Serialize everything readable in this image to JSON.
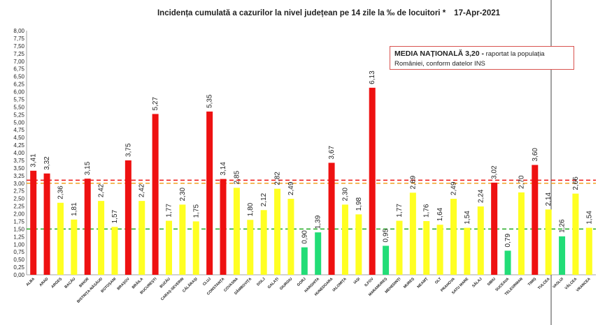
{
  "chart_data": {
    "type": "bar",
    "title": "Incidența cumulată a cazurilor la nivel județean pe 14 zile la ‰ de locuitori *",
    "date": "17-Apr-2021",
    "ylim": [
      0,
      8
    ],
    "yticks": [
      "0,00",
      "0,25",
      "0,50",
      "0,75",
      "1,00",
      "1,25",
      "1,50",
      "1,75",
      "2,00",
      "2,25",
      "2,50",
      "2,75",
      "3,00",
      "3,25",
      "3,50",
      "3,75",
      "4,00",
      "4,25",
      "4,50",
      "4,75",
      "5,00",
      "5,25",
      "5,50",
      "5,75",
      "6,00",
      "6,25",
      "6,50",
      "6,75",
      "7,00",
      "7,25",
      "7,50",
      "7,75",
      "8,00"
    ],
    "categories": [
      "ALBA",
      "ARAD",
      "ARGEȘ",
      "BACĂU",
      "BIHOR",
      "BISTRIȚA-NĂSĂUD",
      "BOTOȘANI",
      "BRAȘOV",
      "BRĂILA",
      "BUCUREȘTI",
      "BUZĂU",
      "CARAȘ-SEVERIN",
      "CĂLĂRAȘI",
      "CLUJ",
      "CONSTANȚA",
      "COVASNA",
      "DÂMBOVIȚA",
      "DOLJ",
      "GALAȚI",
      "GIURGIU",
      "GORJ",
      "HARGHITA",
      "HUNEDOARA",
      "IALOMIȚA",
      "IAȘI",
      "ILFOV",
      "MARAMUREȘ",
      "MEHEDINȚI",
      "MUREȘ",
      "NEAMȚ",
      "OLT",
      "PRAHOVA",
      "SATU MARE",
      "SĂLAJ",
      "SIBIU",
      "SUCEAVA",
      "TELEORMAN",
      "TIMIȘ",
      "TULCEA",
      "VASLUI",
      "VÂLCEA",
      "VRANCEA"
    ],
    "values": [
      3.41,
      3.32,
      2.36,
      1.81,
      3.15,
      2.42,
      1.57,
      3.75,
      2.42,
      5.27,
      1.77,
      2.3,
      1.75,
      5.35,
      3.14,
      2.85,
      1.8,
      2.12,
      2.82,
      2.49,
      0.9,
      1.39,
      3.67,
      2.3,
      1.98,
      6.13,
      0.95,
      1.77,
      2.69,
      1.76,
      1.64,
      2.49,
      1.54,
      2.24,
      3.02,
      0.79,
      2.7,
      3.6,
      2.14,
      1.26,
      2.66,
      1.54
    ],
    "value_labels": [
      "3,41",
      "3,32",
      "2,36",
      "1,81",
      "3,15",
      "2,42",
      "1,57",
      "3,75",
      "2,42",
      "5,27",
      "1,77",
      "2,30",
      "1,75",
      "5,35",
      "3,14",
      "2,85",
      "1,80",
      "2,12",
      "2,82",
      "2,49",
      "0,90",
      "1,39",
      "3,67",
      "2,30",
      "1,98",
      "6,13",
      "0,95",
      "1,77",
      "2,69",
      "1,76",
      "1,64",
      "2,49",
      "1,54",
      "2,24",
      "3,02",
      "0,79",
      "2,70",
      "3,60",
      "2,14",
      "1,26",
      "2,66",
      "1,54"
    ],
    "colors": {
      "red": "#ee1111",
      "yellow": "#ffff22",
      "green": "#22dd77"
    },
    "thresholds": {
      "red_min": 3.0,
      "green_max": 1.5
    },
    "reference_lines": [
      {
        "value": 3.1,
        "color": "#ee1111",
        "style": "dashed"
      },
      {
        "value": 3.0,
        "color": "#f0a020",
        "style": "dashed"
      },
      {
        "value": 1.5,
        "color": "#22aa22",
        "style": "dashed"
      }
    ],
    "grid": false
  },
  "note": {
    "bold": "MEDIA NAȚIONALĂ 3,20 -",
    "rest": " raportat la populația României, conform datelor INS"
  }
}
